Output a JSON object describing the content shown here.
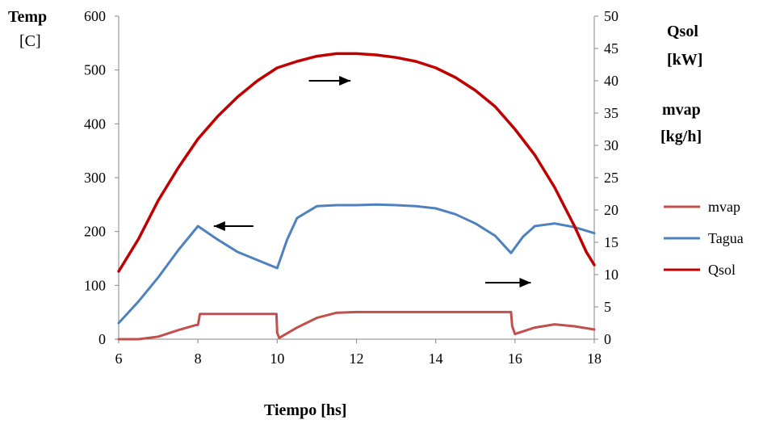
{
  "chart_data": {
    "type": "line",
    "xlabel": "Tiempo [hs]",
    "ylabel_left": [
      "Temp",
      "[C]"
    ],
    "ylabel_right": [
      "Qsol",
      "[kW]",
      "mvap",
      "[kg/h]"
    ],
    "xlim": [
      6,
      18
    ],
    "ylim_left": [
      0,
      600
    ],
    "ylim_right": [
      0,
      50
    ],
    "x_ticks": [
      6,
      8,
      10,
      12,
      14,
      16,
      18
    ],
    "y_ticks_left": [
      0,
      100,
      200,
      300,
      400,
      500,
      600
    ],
    "y_ticks_right": [
      0,
      5,
      10,
      15,
      20,
      25,
      30,
      35,
      40,
      45,
      50
    ],
    "grid": false,
    "legend_position": "right",
    "series": [
      {
        "name": "mvap",
        "axis": "right",
        "color": "#c0504d",
        "x": [
          6,
          6.5,
          7,
          7.5,
          7.95,
          8.0,
          8.05,
          9,
          9.98,
          10.0,
          10.05,
          10.5,
          11,
          11.5,
          12,
          14,
          15.9,
          15.93,
          16.0,
          16.5,
          17,
          17.5,
          18
        ],
        "y": [
          0,
          0,
          0.4,
          1.4,
          2.2,
          2.2,
          3.9,
          3.9,
          3.9,
          1.0,
          0.2,
          1.8,
          3.3,
          4.1,
          4.2,
          4.2,
          4.2,
          2.0,
          0.8,
          1.8,
          2.3,
          2.0,
          1.5
        ]
      },
      {
        "name": "Tagua",
        "axis": "left",
        "color": "#4f81bd",
        "x": [
          6,
          6.5,
          7,
          7.5,
          8,
          8.5,
          9,
          9.5,
          10,
          10.25,
          10.5,
          11,
          11.5,
          12,
          12.5,
          13,
          13.5,
          14,
          14.5,
          15,
          15.5,
          15.9,
          16.2,
          16.5,
          17,
          17.5,
          18
        ],
        "y": [
          30,
          70,
          115,
          165,
          210,
          185,
          162,
          147,
          132,
          185,
          225,
          247,
          249,
          249,
          250,
          249,
          247,
          243,
          232,
          215,
          192,
          160,
          190,
          210,
          215,
          208,
          197
        ]
      },
      {
        "name": "Qsol",
        "axis": "right",
        "color": "#c00000",
        "x": [
          6,
          6.5,
          7,
          7.5,
          8,
          8.5,
          9,
          9.5,
          10,
          10.5,
          11,
          11.5,
          12,
          12.5,
          13,
          13.5,
          14,
          14.5,
          15,
          15.5,
          16,
          16.5,
          17,
          17.5,
          17.8,
          18
        ],
        "y": [
          10.5,
          15.5,
          21.5,
          26.5,
          31,
          34.5,
          37.5,
          40,
          42,
          43,
          43.8,
          44.2,
          44.2,
          44.0,
          43.6,
          43.0,
          42.0,
          40.5,
          38.5,
          36,
          32.5,
          28.5,
          23.5,
          17.5,
          13.5,
          11.5
        ]
      }
    ],
    "annotations": [
      {
        "type": "arrow",
        "direction": "right",
        "x_from": 10.8,
        "x_to": 11.85,
        "y": 480,
        "axis": "left"
      },
      {
        "type": "arrow",
        "direction": "left",
        "x_from": 9.4,
        "x_to": 8.4,
        "y": 210,
        "axis": "left"
      },
      {
        "type": "arrow",
        "direction": "right",
        "x_from": 15.25,
        "x_to": 16.4,
        "y": 105,
        "axis": "left"
      }
    ]
  }
}
